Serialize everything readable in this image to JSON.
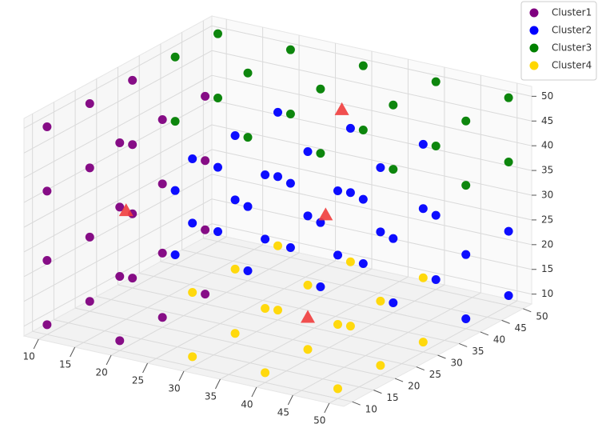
{
  "chart_data": {
    "type": "scatter3d",
    "xlim": [
      8,
      52
    ],
    "ylim": [
      8,
      52
    ],
    "zlim": [
      8,
      52
    ],
    "xticks": [
      10,
      15,
      20,
      25,
      30,
      35,
      40,
      45,
      50
    ],
    "yticks": [
      10,
      15,
      20,
      25,
      30,
      35,
      40,
      45,
      50
    ],
    "zticks": [
      10,
      15,
      20,
      25,
      30,
      35,
      40,
      45,
      50
    ],
    "grid": true,
    "legend": "upper right",
    "series": [
      {
        "name": "Cluster1",
        "color": "purple",
        "x": [
          10,
          10,
          10,
          10,
          10,
          10,
          10,
          10,
          10,
          10,
          10,
          10,
          20,
          20,
          20,
          20,
          20,
          20,
          20,
          20,
          20,
          20,
          20,
          20
        ],
        "y": [
          10,
          10,
          10,
          10,
          20,
          20,
          20,
          20,
          30,
          30,
          30,
          30,
          10,
          10,
          10,
          10,
          20,
          20,
          20,
          20,
          30,
          30,
          30,
          30
        ],
        "z": [
          10,
          23,
          37,
          50,
          10,
          23,
          37,
          50,
          10,
          23,
          37,
          50,
          10,
          23,
          37,
          50,
          10,
          23,
          37,
          50,
          10,
          23,
          37,
          50
        ]
      },
      {
        "name": "Cluster2",
        "color": "blue",
        "x": [
          30,
          30,
          30,
          30,
          30,
          30,
          40,
          40,
          40,
          40,
          40,
          40,
          50,
          50,
          50,
          50,
          50,
          50,
          10,
          10,
          10,
          10,
          20,
          20,
          20,
          20,
          30,
          30,
          30,
          30,
          40,
          40,
          40,
          40,
          50,
          50,
          50,
          50
        ],
        "y": [
          10,
          10,
          20,
          20,
          30,
          30,
          10,
          10,
          20,
          20,
          30,
          30,
          10,
          10,
          20,
          20,
          30,
          30,
          40,
          40,
          50,
          50,
          40,
          40,
          50,
          50,
          40,
          40,
          50,
          50,
          40,
          40,
          50,
          50,
          40,
          40,
          50,
          50
        ],
        "z": [
          37,
          50,
          37,
          50,
          37,
          50,
          37,
          50,
          37,
          50,
          37,
          50,
          37,
          50,
          37,
          50,
          37,
          50,
          10,
          23,
          10,
          23,
          10,
          23,
          10,
          23,
          10,
          23,
          10,
          23,
          10,
          23,
          10,
          23,
          10,
          23,
          10,
          23
        ]
      },
      {
        "name": "Cluster3",
        "color": "green",
        "x": [
          10,
          10,
          10,
          10,
          20,
          20,
          20,
          20,
          30,
          30,
          30,
          30,
          40,
          40,
          40,
          40,
          50,
          50,
          50,
          50
        ],
        "y": [
          40,
          40,
          50,
          50,
          40,
          40,
          50,
          50,
          40,
          40,
          50,
          50,
          40,
          40,
          50,
          50,
          40,
          40,
          50,
          50
        ],
        "z": [
          37,
          50,
          37,
          50,
          37,
          50,
          37,
          50,
          37,
          50,
          37,
          50,
          37,
          50,
          37,
          50,
          37,
          50,
          37,
          50
        ]
      },
      {
        "name": "Cluster4",
        "color": "gold",
        "x": [
          30,
          30,
          30,
          30,
          30,
          30,
          40,
          40,
          40,
          40,
          40,
          40,
          50,
          50,
          50,
          50,
          50,
          50
        ],
        "y": [
          10,
          10,
          20,
          20,
          30,
          30,
          10,
          10,
          20,
          20,
          30,
          30,
          10,
          10,
          20,
          20,
          30,
          30
        ],
        "z": [
          10,
          23,
          10,
          23,
          10,
          23,
          10,
          23,
          10,
          23,
          10,
          23,
          10,
          23,
          10,
          23,
          10,
          23
        ]
      }
    ],
    "centroids": {
      "color": "#f03c3c",
      "x": [
        15,
        34.7,
        30,
        40
      ],
      "y": [
        20,
        33.2,
        45,
        20
      ],
      "z": [
        30,
        29.3,
        43.5,
        16.5
      ]
    }
  }
}
